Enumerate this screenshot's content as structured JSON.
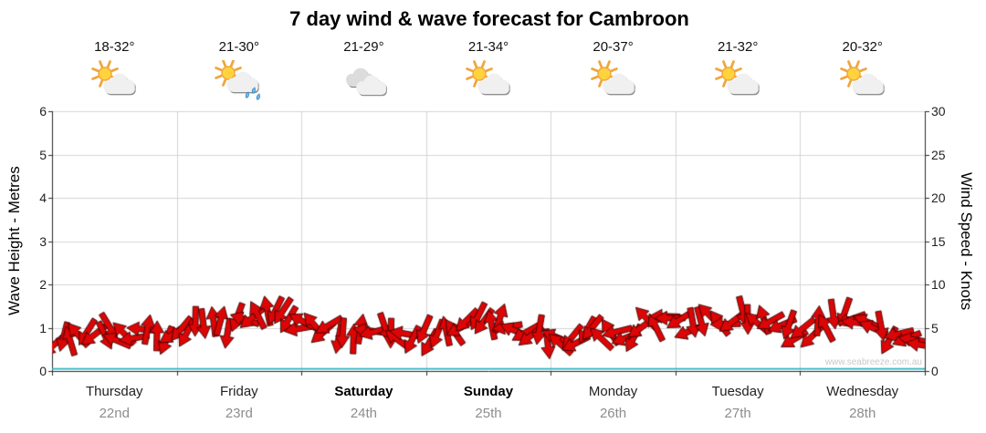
{
  "title": "7 day wind & wave forecast for Cambroon",
  "watermark": "www.seabreeze.com.au",
  "axes": {
    "left_label": "Wave Height - Metres",
    "right_label": "Wind Speed - Knots",
    "left_ticks": [
      0,
      1,
      2,
      3,
      4,
      5,
      6
    ],
    "right_ticks": [
      0,
      5,
      10,
      15,
      20,
      25,
      30
    ]
  },
  "days": [
    {
      "name": "Thursday",
      "date": "22nd",
      "temp": "18-32°",
      "icon": "partly-cloudy",
      "weekend": false
    },
    {
      "name": "Friday",
      "date": "23rd",
      "temp": "21-30°",
      "icon": "showers",
      "weekend": false
    },
    {
      "name": "Saturday",
      "date": "24th",
      "temp": "21-29°",
      "icon": "cloudy",
      "weekend": true
    },
    {
      "name": "Sunday",
      "date": "25th",
      "temp": "21-34°",
      "icon": "partly-cloudy",
      "weekend": true
    },
    {
      "name": "Monday",
      "date": "26th",
      "temp": "20-37°",
      "icon": "partly-cloudy",
      "weekend": false
    },
    {
      "name": "Tuesday",
      "date": "27th",
      "temp": "21-32°",
      "icon": "partly-cloudy",
      "weekend": false
    },
    {
      "name": "Wednesday",
      "date": "28th",
      "temp": "20-32°",
      "icon": "partly-cloudy",
      "weekend": false
    }
  ],
  "colors": {
    "wind_arrow": "#dd0505",
    "wind_arrow_outline": "#330000",
    "wave_line": "#2ab3c0",
    "grid": "#d4d4d4",
    "axis": "#2a2a2a",
    "weekend_label": "#000000",
    "date_label": "#8d8d8d",
    "watermark": "#c9c9c9"
  },
  "chart_data": {
    "type": "line",
    "title": "7 day wind & wave forecast for Cambroon",
    "x_categories": [
      "Thursday 22nd",
      "Friday 23rd",
      "Saturday 24th",
      "Sunday 25th",
      "Monday 26th",
      "Tuesday 27th",
      "Wednesday 28th"
    ],
    "samples_per_day": 8,
    "ylabel_left": "Wave Height - Metres",
    "ylim_left": [
      0,
      6
    ],
    "ylabel_right": "Wind Speed - Knots",
    "ylim_right": [
      0,
      30
    ],
    "grid": true,
    "legend": "none",
    "series": [
      {
        "name": "Wind Speed",
        "units": "knots",
        "axis": "right",
        "style": "wind-arrows",
        "color": "#dd0505",
        "values": [
          4.2,
          3.4,
          3.8,
          4.6,
          4.4,
          3.6,
          4.0,
          4.4,
          4.4,
          4.8,
          5.4,
          5.0,
          5.6,
          6.2,
          7.0,
          6.6,
          5.6,
          5.0,
          4.6,
          4.2,
          4.4,
          4.6,
          4.2,
          4.4,
          4.0,
          3.8,
          4.6,
          5.6,
          6.0,
          5.2,
          4.4,
          4.0,
          3.8,
          3.4,
          3.8,
          4.2,
          4.0,
          4.4,
          5.0,
          5.6,
          5.2,
          4.8,
          5.4,
          6.2,
          6.6,
          5.8,
          5.2,
          4.8,
          4.4,
          5.0,
          5.8,
          6.0,
          5.4,
          4.6,
          3.8,
          3.2
        ]
      },
      {
        "name": "Wind Direction",
        "units": "degrees",
        "values": [
          110,
          250,
          140,
          80,
          200,
          160,
          300,
          120,
          140,
          110,
          260,
          90,
          170,
          230,
          120,
          150,
          200,
          130,
          100,
          250,
          160,
          90,
          220,
          140,
          120,
          240,
          150,
          100,
          260,
          180,
          130,
          90,
          210,
          140,
          100,
          230,
          160,
          120,
          250,
          180,
          130,
          100,
          220,
          150,
          90,
          240,
          170,
          120,
          140,
          260,
          110,
          180,
          230,
          100,
          150,
          200
        ]
      },
      {
        "name": "Wave Height",
        "units": "metres",
        "axis": "left",
        "style": "line",
        "color": "#2ab3c0",
        "values": [
          0.05,
          0.05,
          0.05,
          0.05,
          0.05,
          0.05,
          0.05,
          0.05,
          0.05,
          0.05,
          0.05,
          0.05,
          0.05,
          0.05,
          0.05,
          0.05,
          0.05,
          0.05,
          0.05,
          0.05,
          0.05,
          0.05,
          0.05,
          0.05,
          0.05,
          0.05,
          0.05,
          0.05,
          0.05,
          0.05,
          0.05,
          0.05,
          0.05,
          0.05,
          0.05,
          0.05,
          0.05,
          0.05,
          0.05,
          0.05,
          0.05,
          0.05,
          0.05,
          0.05,
          0.05,
          0.05,
          0.05,
          0.05,
          0.05,
          0.05,
          0.05,
          0.05,
          0.05,
          0.05,
          0.05,
          0.05
        ]
      }
    ]
  }
}
